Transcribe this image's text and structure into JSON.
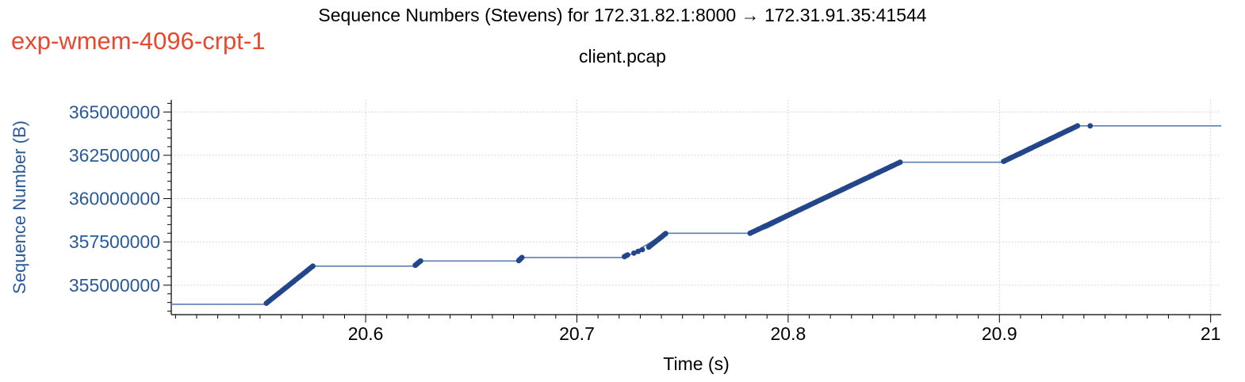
{
  "header": {
    "title": "Sequence Numbers (Stevens) for 172.31.82.1:8000 → 172.31.91.35:41544",
    "subtitle": "client.pcap",
    "experiment_label": "exp-wmem-4096-crpt-1"
  },
  "colors": {
    "series": "#23468a",
    "line": "#5b7fb5",
    "experiment_label": "#e8482e",
    "y_axis_text": "#2a5a98",
    "grid": "#cccccc"
  },
  "chart_data": {
    "type": "scatter",
    "xlabel": "Time (s)",
    "ylabel": "Sequence Number (B)",
    "xlim": [
      20.508,
      21.005
    ],
    "ylim": [
      353300000,
      365700000
    ],
    "x_ticks": [
      20.6,
      20.7,
      20.8,
      20.9,
      21
    ],
    "x_tick_labels": [
      "20.6",
      "20.7",
      "20.8",
      "20.9",
      "21"
    ],
    "y_ticks": [
      355000000,
      357500000,
      360000000,
      362500000,
      365000000
    ],
    "y_tick_labels": [
      "355000000",
      "357500000",
      "360000000",
      "362500000",
      "365000000"
    ],
    "grid": true,
    "step_line": [
      [
        20.508,
        353900000
      ],
      [
        20.553,
        353900000
      ],
      [
        20.553,
        353960000
      ],
      [
        20.575,
        356100000
      ],
      [
        20.624,
        356100000
      ],
      [
        20.626,
        356400000
      ],
      [
        20.673,
        356400000
      ],
      [
        20.674,
        356600000
      ],
      [
        20.723,
        356600000
      ],
      [
        20.742,
        358000000
      ],
      [
        20.782,
        358000000
      ],
      [
        20.79,
        358300000
      ],
      [
        20.853,
        362100000
      ],
      [
        20.902,
        362100000
      ],
      [
        20.937,
        364200000
      ],
      [
        20.943,
        364200000
      ],
      [
        21.005,
        364200000
      ]
    ],
    "bursts": [
      {
        "x_start": 20.553,
        "y_start": 353960000,
        "x_end": 20.575,
        "y_end": 356100000,
        "count": 30
      },
      {
        "x_start": 20.6235,
        "y_start": 356150000,
        "x_end": 20.626,
        "y_end": 356400000,
        "count": 6
      },
      {
        "x_start": 20.6725,
        "y_start": 356420000,
        "x_end": 20.674,
        "y_end": 356600000,
        "count": 5
      },
      {
        "x_start": 20.7225,
        "y_start": 356650000,
        "x_end": 20.724,
        "y_end": 356750000,
        "count": 3
      },
      {
        "x_start": 20.727,
        "y_start": 356850000,
        "x_end": 20.731,
        "y_end": 357050000,
        "count": 3
      },
      {
        "x_start": 20.734,
        "y_start": 357200000,
        "x_end": 20.742,
        "y_end": 357980000,
        "count": 14
      },
      {
        "x_start": 20.782,
        "y_start": 358000000,
        "x_end": 20.853,
        "y_end": 362100000,
        "count": 80
      },
      {
        "x_start": 20.902,
        "y_start": 362150000,
        "x_end": 20.937,
        "y_end": 364200000,
        "count": 42
      },
      {
        "x_start": 20.943,
        "y_start": 364200000,
        "x_end": 20.943,
        "y_end": 364200000,
        "count": 1
      }
    ]
  }
}
